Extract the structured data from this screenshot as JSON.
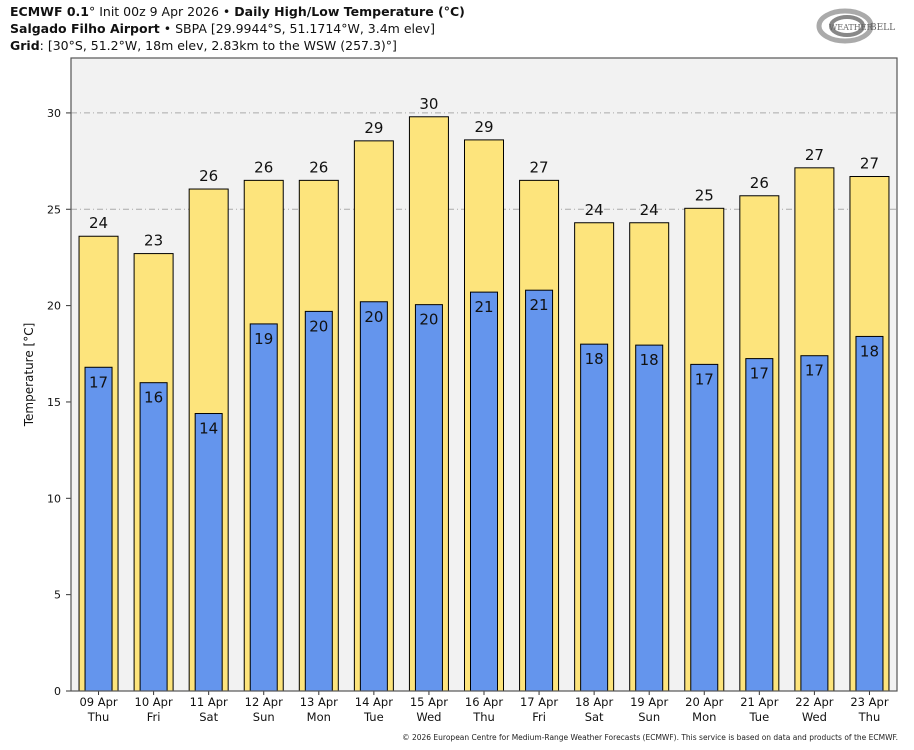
{
  "header": {
    "line1_model": "ECMWF 0.1",
    "line1_deg": "°",
    "line1_init": " Init 00z 9 Apr 2026 • ",
    "line1_title": "Daily High/Low Temperature (°C)",
    "line2_station": "Salgado Filho Airport",
    "line2_rest": " • SBPA [29.9944°S, 51.1714°W, 3.4m elev]",
    "line3_label": "Grid",
    "line3_rest": ": [30°S, 51.2°W, 18m elev, 2.83km to the WSW (257.3)°]"
  },
  "logo_text": "WeatherBELL Analytics LLC",
  "footer": "© 2026 European Centre for Medium-Range Weather Forecasts (ECMWF). This service is based on data and products of the ECMWF.",
  "colors": {
    "high": "#fde47c",
    "low": "#6495ed",
    "plot_bg": "#f2f2f2",
    "edge": "#000000"
  },
  "chart_data": {
    "type": "bar",
    "title": "Daily High/Low Temperature (°C)",
    "ylabel": "Temperature [°C]",
    "xlabel": "",
    "ylim": [
      0,
      32.85
    ],
    "yticks": [
      0,
      5,
      10,
      15,
      20,
      25,
      30
    ],
    "grid": "horizontal dash-dot at 25 and 30",
    "categories": [
      [
        "09 Apr",
        "Thu"
      ],
      [
        "10 Apr",
        "Fri"
      ],
      [
        "11 Apr",
        "Sat"
      ],
      [
        "12 Apr",
        "Sun"
      ],
      [
        "13 Apr",
        "Mon"
      ],
      [
        "14 Apr",
        "Tue"
      ],
      [
        "15 Apr",
        "Wed"
      ],
      [
        "16 Apr",
        "Thu"
      ],
      [
        "17 Apr",
        "Fri"
      ],
      [
        "18 Apr",
        "Sat"
      ],
      [
        "19 Apr",
        "Sun"
      ],
      [
        "20 Apr",
        "Mon"
      ],
      [
        "21 Apr",
        "Tue"
      ],
      [
        "22 Apr",
        "Wed"
      ],
      [
        "23 Apr",
        "Thu"
      ]
    ],
    "series": [
      {
        "key": "high",
        "values": [
          23.6,
          22.7,
          26.05,
          26.5,
          26.5,
          28.55,
          29.8,
          28.6,
          26.5,
          24.3,
          24.3,
          25.05,
          25.7,
          27.15,
          26.7
        ],
        "labels": [
          24,
          23,
          26,
          26,
          26,
          29,
          30,
          29,
          27,
          24,
          24,
          25,
          26,
          27,
          27
        ]
      },
      {
        "key": "low",
        "values": [
          16.8,
          16.0,
          14.4,
          19.05,
          19.7,
          20.2,
          20.05,
          20.7,
          20.8,
          18.0,
          17.95,
          16.95,
          17.25,
          17.4,
          18.4
        ],
        "labels": [
          17,
          16,
          14,
          19,
          20,
          20,
          20,
          21,
          21,
          18,
          18,
          17,
          17,
          17,
          18
        ]
      }
    ]
  }
}
